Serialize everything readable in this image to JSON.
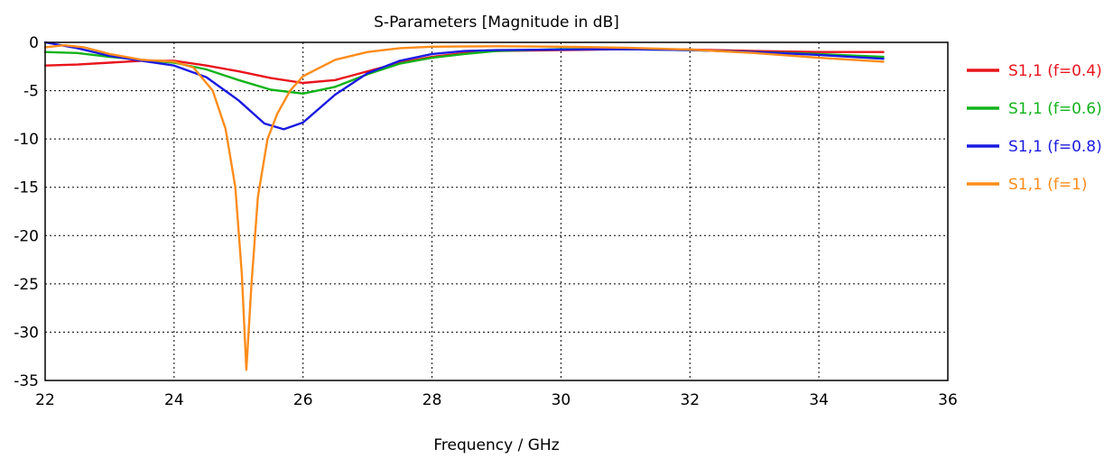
{
  "chart_data": {
    "type": "line",
    "title": "S-Parameters [Magnitude in dB]",
    "xlabel": "Frequency / GHz",
    "ylabel": "",
    "xlim": [
      22,
      36
    ],
    "ylim": [
      -35,
      0
    ],
    "xticks": [
      22,
      24,
      26,
      28,
      30,
      32,
      34,
      36
    ],
    "yticks": [
      0,
      -5,
      -10,
      -15,
      -20,
      -25,
      -30,
      -35
    ],
    "grid": true,
    "legend_position": "right",
    "series": [
      {
        "name": "S1,1 (f=0.4)",
        "color": "#e8141c",
        "points": [
          [
            22,
            -2.4
          ],
          [
            22.5,
            -2.3
          ],
          [
            23,
            -2.1
          ],
          [
            23.5,
            -1.9
          ],
          [
            24,
            -1.9
          ],
          [
            24.5,
            -2.4
          ],
          [
            25,
            -3.0
          ],
          [
            25.5,
            -3.7
          ],
          [
            26,
            -4.2
          ],
          [
            26.5,
            -3.9
          ],
          [
            27,
            -3.0
          ],
          [
            27.5,
            -2.1
          ],
          [
            28,
            -1.5
          ],
          [
            28.5,
            -1.1
          ],
          [
            29,
            -0.9
          ],
          [
            30,
            -0.8
          ],
          [
            31,
            -0.7
          ],
          [
            32,
            -0.75
          ],
          [
            33,
            -0.9
          ],
          [
            34,
            -1.0
          ],
          [
            35,
            -1.0
          ]
        ]
      },
      {
        "name": "S1,1 (f=0.6)",
        "color": "#12b31a",
        "points": [
          [
            22,
            -1.0
          ],
          [
            22.5,
            -1.1
          ],
          [
            23,
            -1.5
          ],
          [
            23.5,
            -1.8
          ],
          [
            24,
            -2.1
          ],
          [
            24.5,
            -2.8
          ],
          [
            25,
            -3.9
          ],
          [
            25.5,
            -4.9
          ],
          [
            26,
            -5.3
          ],
          [
            26.5,
            -4.6
          ],
          [
            27,
            -3.3
          ],
          [
            27.5,
            -2.2
          ],
          [
            28,
            -1.6
          ],
          [
            28.5,
            -1.2
          ],
          [
            29,
            -0.9
          ],
          [
            30,
            -0.7
          ],
          [
            31,
            -0.7
          ],
          [
            32,
            -0.8
          ],
          [
            33,
            -1.0
          ],
          [
            34,
            -1.2
          ],
          [
            35,
            -1.5
          ]
        ]
      },
      {
        "name": "S1,1 (f=0.8)",
        "color": "#1a1ae0",
        "points": [
          [
            22,
            0
          ],
          [
            22.5,
            -0.6
          ],
          [
            23,
            -1.4
          ],
          [
            23.5,
            -1.9
          ],
          [
            24,
            -2.4
          ],
          [
            24.5,
            -3.6
          ],
          [
            25,
            -6.0
          ],
          [
            25.4,
            -8.4
          ],
          [
            25.7,
            -9.0
          ],
          [
            26,
            -8.3
          ],
          [
            26.5,
            -5.4
          ],
          [
            27,
            -3.2
          ],
          [
            27.5,
            -1.9
          ],
          [
            28,
            -1.2
          ],
          [
            28.5,
            -0.9
          ],
          [
            29,
            -0.8
          ],
          [
            30,
            -0.75
          ],
          [
            31,
            -0.7
          ],
          [
            32,
            -0.8
          ],
          [
            33,
            -1.0
          ],
          [
            34,
            -1.3
          ],
          [
            35,
            -1.7
          ]
        ]
      },
      {
        "name": "S1,1 (f=1)",
        "color": "#ff8c1a",
        "points": [
          [
            22,
            -0.5
          ],
          [
            22.3,
            -0.3
          ],
          [
            22.6,
            -0.5
          ],
          [
            23,
            -1.2
          ],
          [
            23.5,
            -1.8
          ],
          [
            24,
            -2.0
          ],
          [
            24.3,
            -2.6
          ],
          [
            24.6,
            -5.0
          ],
          [
            24.8,
            -9.0
          ],
          [
            24.95,
            -15.0
          ],
          [
            25.05,
            -24.0
          ],
          [
            25.12,
            -33.9
          ],
          [
            25.2,
            -25.0
          ],
          [
            25.3,
            -16.0
          ],
          [
            25.45,
            -10.0
          ],
          [
            25.6,
            -7.4
          ],
          [
            25.8,
            -5.0
          ],
          [
            26,
            -3.5
          ],
          [
            26.5,
            -1.8
          ],
          [
            27,
            -1.0
          ],
          [
            27.5,
            -0.6
          ],
          [
            28,
            -0.45
          ],
          [
            29,
            -0.4
          ],
          [
            30,
            -0.45
          ],
          [
            31,
            -0.55
          ],
          [
            32,
            -0.75
          ],
          [
            33,
            -1.1
          ],
          [
            34,
            -1.6
          ],
          [
            35,
            -2.0
          ]
        ]
      }
    ]
  }
}
